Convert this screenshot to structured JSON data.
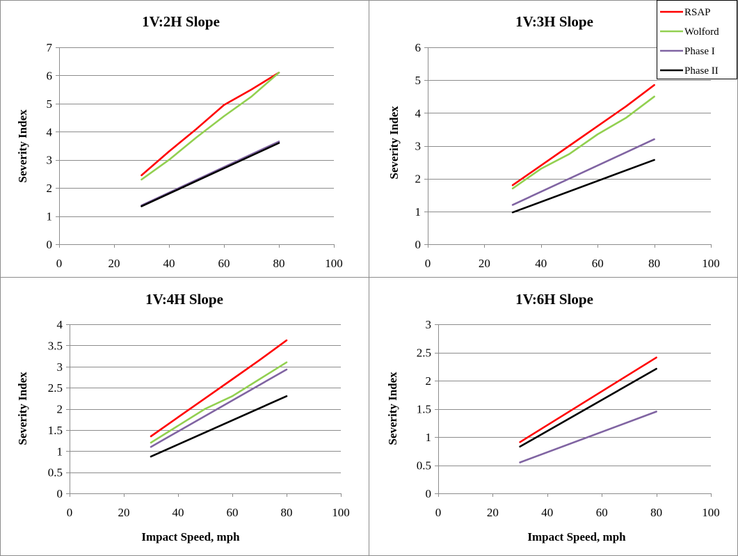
{
  "colors": {
    "RSAP": "#ff0000",
    "Wolford": "#92d050",
    "Phase I": "#8064a2",
    "Phase II": "#000000"
  },
  "legend": {
    "placement": "top-right",
    "entries": [
      "RSAP",
      "Wolford",
      "Phase I",
      "Phase II"
    ]
  },
  "chart_data": [
    {
      "type": "line",
      "title": "1V:2H Slope",
      "xlabel": "",
      "ylabel": "Severity Index",
      "xlim": [
        0,
        100
      ],
      "ylim": [
        0,
        7
      ],
      "xticks": [
        0,
        20,
        40,
        60,
        80,
        100
      ],
      "yticks": [
        0,
        1,
        2,
        3,
        4,
        5,
        6,
        7
      ],
      "ytick_labels": [
        "0",
        "1",
        "2",
        "3",
        "4",
        "5",
        "6",
        "7"
      ],
      "grid": true,
      "series": [
        {
          "name": "RSAP",
          "x": [
            30,
            40,
            50,
            60,
            70,
            80
          ],
          "y": [
            2.45,
            3.3,
            4.1,
            4.95,
            5.5,
            6.1
          ]
        },
        {
          "name": "Wolford",
          "x": [
            30,
            40,
            50,
            60,
            70,
            80
          ],
          "y": [
            2.3,
            3.0,
            3.8,
            4.55,
            5.25,
            6.1
          ]
        },
        {
          "name": "Phase I",
          "x": [
            30,
            80
          ],
          "y": [
            1.38,
            3.65
          ]
        },
        {
          "name": "Phase II",
          "x": [
            30,
            80
          ],
          "y": [
            1.35,
            3.6
          ]
        }
      ]
    },
    {
      "type": "line",
      "title": "1V:3H Slope",
      "xlabel": "",
      "ylabel": "Severity Index",
      "xlim": [
        0,
        100
      ],
      "ylim": [
        0,
        6
      ],
      "xticks": [
        0,
        20,
        40,
        60,
        80,
        100
      ],
      "yticks": [
        0,
        1,
        2,
        3,
        4,
        5,
        6
      ],
      "ytick_labels": [
        "0",
        "1",
        "2",
        "3",
        "4",
        "5",
        "6"
      ],
      "grid": true,
      "series": [
        {
          "name": "RSAP",
          "x": [
            30,
            40,
            50,
            60,
            70,
            80
          ],
          "y": [
            1.8,
            2.4,
            3.0,
            3.6,
            4.2,
            4.85
          ]
        },
        {
          "name": "Wolford",
          "x": [
            30,
            40,
            50,
            60,
            70,
            80
          ],
          "y": [
            1.7,
            2.3,
            2.75,
            3.35,
            3.85,
            4.5
          ]
        },
        {
          "name": "Phase I",
          "x": [
            30,
            80
          ],
          "y": [
            1.2,
            3.2
          ]
        },
        {
          "name": "Phase II",
          "x": [
            30,
            80
          ],
          "y": [
            0.97,
            2.57
          ]
        }
      ]
    },
    {
      "type": "line",
      "title": "1V:4H Slope",
      "xlabel": "Impact Speed, mph",
      "ylabel": "Severity Index",
      "xlim": [
        0,
        100
      ],
      "ylim": [
        0,
        4
      ],
      "xticks": [
        0,
        20,
        40,
        60,
        80,
        100
      ],
      "yticks": [
        0,
        0.5,
        1,
        1.5,
        2,
        2.5,
        3,
        3.5,
        4
      ],
      "ytick_labels": [
        "0",
        "0.5",
        "1",
        "1.5",
        "2",
        "2.5",
        "3",
        "3.5",
        "4"
      ],
      "grid": true,
      "series": [
        {
          "name": "RSAP",
          "x": [
            30,
            40,
            50,
            60,
            70,
            80
          ],
          "y": [
            1.35,
            1.8,
            2.25,
            2.7,
            3.15,
            3.62
          ]
        },
        {
          "name": "Wolford",
          "x": [
            30,
            40,
            50,
            60,
            70,
            80
          ],
          "y": [
            1.2,
            1.6,
            2.0,
            2.3,
            2.7,
            3.1
          ]
        },
        {
          "name": "Phase I",
          "x": [
            30,
            80
          ],
          "y": [
            1.1,
            2.93
          ]
        },
        {
          "name": "Phase II",
          "x": [
            30,
            80
          ],
          "y": [
            0.87,
            2.3
          ]
        }
      ]
    },
    {
      "type": "line",
      "title": "1V:6H Slope",
      "xlabel": "Impact Speed, mph",
      "ylabel": "Severity Index",
      "xlim": [
        0,
        100
      ],
      "ylim": [
        0,
        3
      ],
      "xticks": [
        0,
        20,
        40,
        60,
        80,
        100
      ],
      "yticks": [
        0,
        0.5,
        1,
        1.5,
        2,
        2.5,
        3
      ],
      "ytick_labels": [
        "0",
        "0.5",
        "1",
        "1.5",
        "2",
        "2.5",
        "3"
      ],
      "grid": true,
      "series": [
        {
          "name": "RSAP",
          "x": [
            30,
            80
          ],
          "y": [
            0.91,
            2.41
          ]
        },
        {
          "name": "Phase I",
          "x": [
            30,
            80
          ],
          "y": [
            0.55,
            1.45
          ]
        },
        {
          "name": "Phase II",
          "x": [
            30,
            80
          ],
          "y": [
            0.83,
            2.21
          ]
        }
      ]
    }
  ]
}
